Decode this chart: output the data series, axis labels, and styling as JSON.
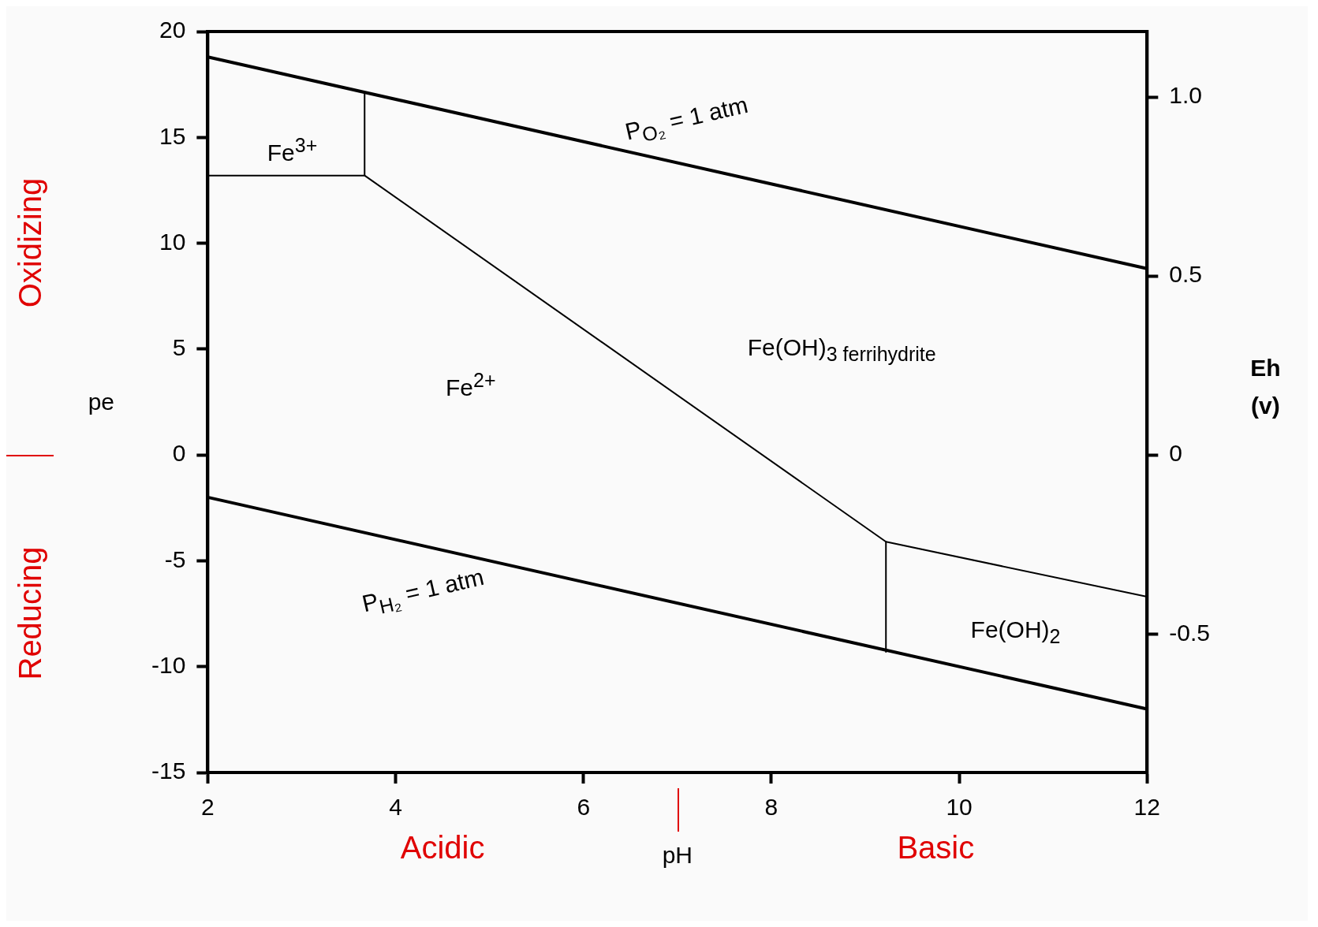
{
  "chart_data": {
    "type": "line",
    "xlabel": "pH",
    "ylabel": "pe",
    "y2label": "Eh (v)",
    "xlim": [
      2,
      12
    ],
    "xticks": [
      2,
      4,
      6,
      8,
      10,
      12
    ],
    "ylim": [
      -15,
      20
    ],
    "yticks": [
      -15,
      -10,
      -5,
      0,
      5,
      10,
      15,
      20
    ],
    "y2lim": [
      -0.887,
      1.183
    ],
    "y2ticks": [
      {
        "value": 1,
        "label": "1.0"
      },
      {
        "value": 0.5,
        "label": "0.5"
      },
      0,
      {
        "value": -0.5,
        "label": "-0.5"
      }
    ],
    "grid": false,
    "legend": false,
    "marker": "none",
    "line_style": "solid",
    "series": [
      {
        "color": "#000000",
        "x": [
          2,
          12
        ],
        "values": [
          18.8,
          8.8
        ]
      },
      {
        "color": "#000000",
        "x": [
          2,
          12
        ],
        "values": [
          -2,
          -12
        ]
      },
      {
        "color": "#000000",
        "x": [
          2,
          3.67
        ],
        "values": [
          13.2,
          13.2
        ]
      },
      {
        "color": "#000000",
        "x": [
          3.67,
          3.67
        ],
        "values": [
          13.2,
          17.1
        ]
      },
      {
        "color": "#000000",
        "x": [
          3.67,
          9.22,
          12
        ],
        "values": [
          13.2,
          -4.1,
          -6.7
        ]
      },
      {
        "color": "#000000",
        "x": [
          9.22,
          9.22
        ],
        "values": [
          -4.1,
          -9.3
        ]
      }
    ],
    "annotations": [
      "P$_{O₂}$ = 1 atm",
      "Fe$^{3+}$",
      "Fe$^{2+}$",
      "Fe(OH)$_{3 ferrihydrite}$",
      "P$_{H₂}$ = 1 atm",
      "Fe(OH)$_{2}$",
      "Oxidizing",
      "Reducing",
      "Acidic",
      "Basic"
    ]
  }
}
